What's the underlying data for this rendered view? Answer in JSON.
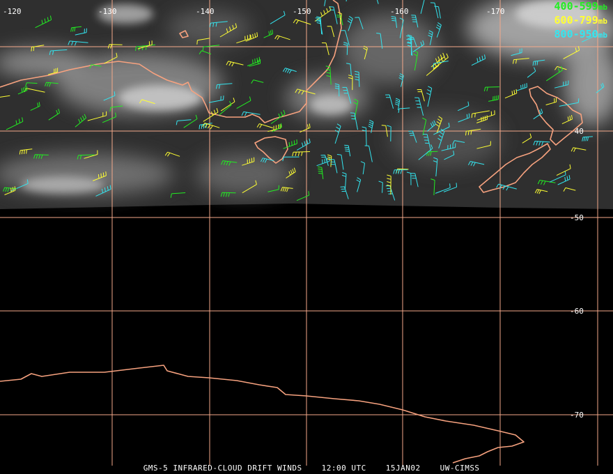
{
  "title": {
    "satellite": "GMS-5 INFRARED-CLOUD DRIFT WINDS",
    "time": "12:00 UTC",
    "date": "15JAN02",
    "source": "UW-CIMSS"
  },
  "legend": [
    {
      "range": "400-599",
      "unit": "mb",
      "color": "#22ee22"
    },
    {
      "range": "600-799",
      "unit": "mb",
      "color": "#ffff33"
    },
    {
      "range": "800-950",
      "unit": "mb",
      "color": "#33e6f0"
    }
  ],
  "longitude_labels": [
    "-120",
    "-130",
    "-140",
    "-150",
    "-160",
    "-170"
  ],
  "latitude_labels": [
    "-40",
    "-50",
    "-60",
    "-70"
  ],
  "colors": {
    "background": "#000000",
    "grid": "#f4a98a",
    "coastline": "#f7a27f",
    "cloud": "#9a9a9a"
  },
  "layers": [
    "infrared-cloud-imagery",
    "coastlines",
    "lat-lon-grid",
    "wind-barbs"
  ]
}
